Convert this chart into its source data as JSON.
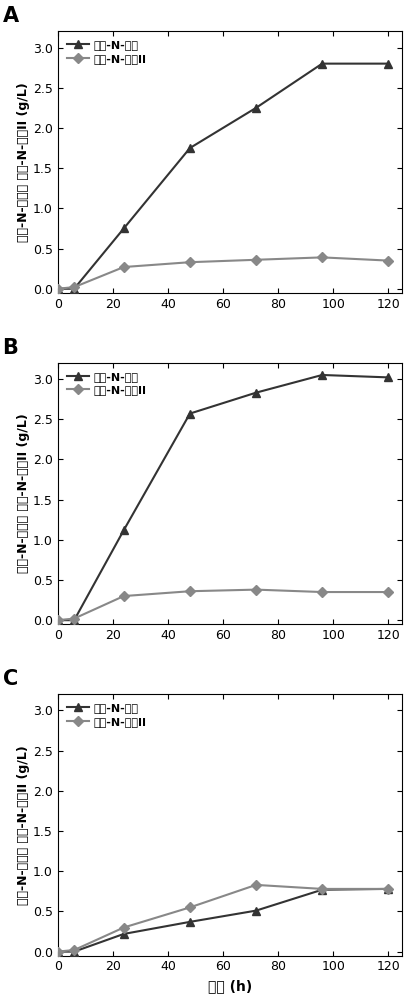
{
  "panels": [
    "A",
    "B",
    "C"
  ],
  "xlabel": "时间 (h)",
  "ylabel": "乳酸-N-四糖， 乳酸-N-三糖II (g/L)",
  "ylabel_line1": "乳酸-N-四糖，乳酸-N-三糖II (g/L)",
  "xlim": [
    0,
    125
  ],
  "ylim": [
    -0.05,
    3.2
  ],
  "xticks": [
    0,
    20,
    40,
    60,
    80,
    100,
    120
  ],
  "yticks": [
    0.0,
    0.5,
    1.0,
    1.5,
    2.0,
    2.5,
    3.0
  ],
  "legend_label_dark": "乳酸-N-四糖",
  "legend_label_light": "乳酸-N-三糖II",
  "color_dark": "#333333",
  "color_light": "#888888",
  "A": {
    "dark_x": [
      0,
      6,
      24,
      48,
      72,
      96,
      120
    ],
    "dark_y": [
      0.0,
      0.0,
      0.75,
      1.75,
      2.25,
      2.8,
      2.8
    ],
    "light_x": [
      0,
      6,
      24,
      48,
      72,
      96,
      120
    ],
    "light_y": [
      0.0,
      0.02,
      0.27,
      0.33,
      0.36,
      0.39,
      0.35
    ]
  },
  "B": {
    "dark_x": [
      0,
      6,
      24,
      48,
      72,
      96,
      120
    ],
    "dark_y": [
      0.0,
      0.0,
      1.12,
      2.57,
      2.83,
      3.05,
      3.02
    ],
    "light_x": [
      0,
      6,
      24,
      48,
      72,
      96,
      120
    ],
    "light_y": [
      0.0,
      0.02,
      0.3,
      0.36,
      0.38,
      0.35,
      0.35
    ]
  },
  "C": {
    "dark_x": [
      0,
      6,
      24,
      48,
      72,
      96,
      120
    ],
    "dark_y": [
      0.0,
      0.0,
      0.22,
      0.37,
      0.51,
      0.77,
      0.78
    ],
    "light_x": [
      0,
      6,
      24,
      48,
      72,
      96,
      120
    ],
    "light_y": [
      0.0,
      0.02,
      0.3,
      0.55,
      0.83,
      0.78,
      0.78
    ]
  }
}
